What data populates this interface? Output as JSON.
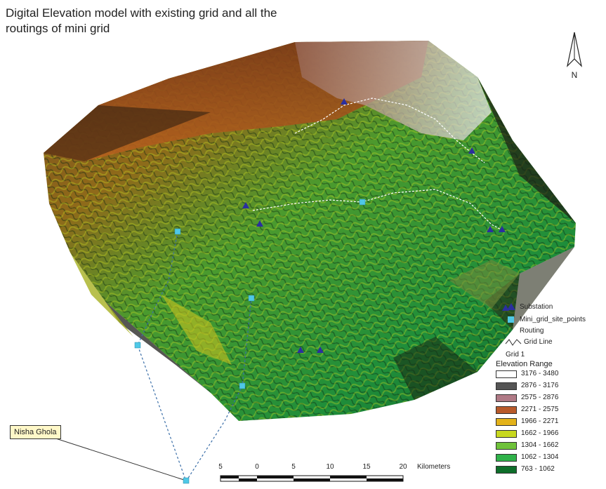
{
  "title": "Digital Elevation model with existing grid and all the routings of mini grid",
  "north_arrow": {
    "label": "N",
    "icon": "north-arrow-icon"
  },
  "callout": {
    "label": "Nisha Ghola"
  },
  "legend": {
    "items": [
      {
        "label": "Substation",
        "symbol": "blue-triangle",
        "color": "#2b2f9e"
      },
      {
        "label": "Mini_grid_site_points",
        "symbol": "cyan-square",
        "color": "#4fc8e6"
      },
      {
        "label": "Routing",
        "symbol": "none"
      },
      {
        "label": "Grid Line",
        "symbol": "line"
      },
      {
        "label": "Grid 1",
        "symbol": "none"
      }
    ],
    "elevation_title": "Elevation Range",
    "ramp": [
      {
        "range": "3176 - 3480",
        "color": "#ffffff"
      },
      {
        "range": "2876 - 3176",
        "color": "#555555"
      },
      {
        "range": "2575 - 2876",
        "color": "#b07a86"
      },
      {
        "range": "2271 - 2575",
        "color": "#b85a2a"
      },
      {
        "range": "1966 - 2271",
        "color": "#e3b21a"
      },
      {
        "range": "1662 - 1966",
        "color": "#c8d81e"
      },
      {
        "range": "1304 - 1662",
        "color": "#6fc23a"
      },
      {
        "range": "1062 - 1304",
        "color": "#2fb24a"
      },
      {
        "range": "763 - 1062",
        "color": "#0e6e2a"
      }
    ]
  },
  "scalebar": {
    "ticks": [
      "5",
      "0",
      "5",
      "10",
      "15",
      "20"
    ],
    "units": "Kilometers"
  },
  "colors": {
    "substation": "#2b2f9e",
    "site_point": "#4fc8e6",
    "route": "#ffffff",
    "callout_bg": "#fff8c8"
  }
}
